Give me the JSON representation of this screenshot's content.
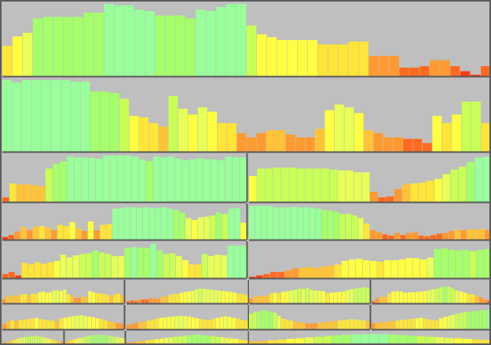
{
  "chart_data": {
    "type": "bar",
    "title": "",
    "xlabel": "",
    "ylabel": "",
    "legend": "none",
    "grid": false,
    "value_range": [
      0,
      100
    ],
    "colors": {
      "background": "#bfbfbf",
      "divider": "#5a5a5a",
      "scale": [
        "#ff3b10",
        "#ff6a20",
        "#ff9a30",
        "#ffc335",
        "#ffe535",
        "#ffff40",
        "#e8ff55",
        "#c8ff55",
        "#a4ff6a",
        "#98ff9a"
      ]
    },
    "panels": [
      {
        "id": "p1",
        "values": [
          42,
          55,
          60,
          80,
          82,
          82,
          82,
          82,
          88,
          88,
          100,
          98,
          98,
          92,
          90,
          84,
          84,
          84,
          80,
          92,
          90,
          96,
          100,
          100,
          70,
          58,
          54,
          50,
          50,
          50,
          50,
          44,
          44,
          44,
          48,
          48,
          28,
          28,
          28,
          12,
          12,
          14,
          22,
          22,
          14,
          7,
          0,
          14
        ]
      },
      {
        "id": "p2",
        "values": [
          100,
          97,
          100,
          100,
          100,
          100,
          100,
          98,
          98,
          84,
          84,
          82,
          74,
          50,
          48,
          40,
          35,
          78,
          60,
          52,
          62,
          56,
          40,
          40,
          26,
          20,
          26,
          30,
          30,
          24,
          20,
          20,
          32,
          58,
          66,
          62,
          54,
          30,
          26,
          20,
          20,
          18,
          18,
          12,
          50,
          40,
          52,
          70,
          70,
          40
        ]
      },
      {
        "id": "p3",
        "values": [
          10,
          40,
          38,
          38,
          36,
          34,
          72,
          82,
          88,
          98,
          96,
          96,
          95,
          93,
          100,
          100,
          100,
          100,
          98,
          92,
          88,
          98,
          96,
          98,
          93,
          90,
          92,
          94,
          92,
          92,
          90,
          98,
          96,
          96
        ]
      },
      {
        "id": "p4",
        "values": [
          56,
          72,
          72,
          74,
          74,
          74,
          72,
          72,
          72,
          72,
          70,
          68,
          68,
          64,
          64,
          22,
          10,
          12,
          28,
          38,
          40,
          42,
          46,
          50,
          60,
          70,
          76,
          86,
          96,
          98
        ]
      },
      {
        "id": "p5",
        "values": [
          8,
          14,
          24,
          38,
          28,
          38,
          40,
          36,
          28,
          44,
          40,
          52,
          34,
          26,
          54,
          28,
          44,
          46,
          92,
          94,
          96,
          96,
          94,
          96,
          94,
          94,
          96,
          92,
          88,
          80,
          64,
          58,
          66,
          68,
          72,
          80,
          76,
          92,
          94,
          50
        ]
      },
      {
        "id": "p6",
        "values": [
          100,
          100,
          100,
          100,
          96,
          96,
          96,
          98,
          96,
          96,
          94,
          92,
          88,
          86,
          82,
          76,
          76,
          72,
          64,
          48,
          28,
          22,
          16,
          12,
          20,
          14,
          20,
          22,
          12,
          10,
          14,
          18,
          20,
          26,
          30,
          28,
          30,
          30,
          32,
          28
        ]
      },
      {
        "id": "p7",
        "values": [
          12,
          18,
          8,
          44,
          40,
          46,
          42,
          46,
          50,
          68,
          60,
          66,
          70,
          72,
          80,
          74,
          70,
          64,
          64,
          88,
          90,
          88,
          88,
          100,
          80,
          70,
          72,
          64,
          52,
          40,
          40,
          70,
          64,
          68,
          66,
          94,
          94,
          94
        ]
      },
      {
        "id": "p8",
        "values": [
          4,
          8,
          12,
          18,
          18,
          22,
          28,
          30,
          32,
          30,
          34,
          36,
          40,
          50,
          54,
          56,
          52,
          50,
          48,
          52,
          52,
          54,
          58,
          58,
          54,
          60,
          84,
          86,
          82,
          80,
          82,
          78,
          82,
          84
        ]
      },
      {
        "id": "p9",
        "values": [
          20,
          34,
          34,
          38,
          36,
          42,
          44,
          38,
          46,
          44,
          52,
          56,
          50,
          52,
          60,
          62,
          58,
          66,
          44,
          38,
          26,
          26,
          32,
          30,
          58,
          52,
          48,
          46,
          44,
          40,
          36,
          42,
          46,
          38
        ]
      },
      {
        "id": "p10",
        "values": [
          10,
          14,
          12,
          20,
          18,
          18,
          26,
          24,
          22,
          34,
          30,
          40,
          44,
          44,
          50,
          54,
          56,
          60,
          66,
          70,
          68,
          66,
          64,
          62,
          60,
          58,
          56,
          54,
          50,
          46,
          44,
          40
        ]
      },
      {
        "id": "p11",
        "values": [
          22,
          30,
          34,
          34,
          36,
          46,
          50,
          48,
          54,
          56,
          60,
          64,
          70,
          68,
          72,
          64,
          60,
          60,
          58,
          48,
          50,
          52,
          54,
          56,
          62,
          66,
          70,
          72,
          76,
          74
        ]
      },
      {
        "id": "p12",
        "values": [
          10,
          24,
          32,
          30,
          46,
          56,
          58,
          56,
          50,
          52,
          52,
          54,
          56,
          58,
          62,
          66,
          70,
          76,
          80,
          78,
          70,
          60,
          56,
          50,
          44,
          42,
          36,
          28,
          20,
          14
        ]
      },
      {
        "id": "p13",
        "values": [
          24,
          36,
          40,
          38,
          42,
          44,
          46,
          48,
          52,
          46,
          44,
          40,
          40,
          36,
          48,
          52,
          56,
          60,
          62,
          64,
          60,
          58,
          54,
          50,
          46,
          40,
          36,
          32,
          28,
          26
        ]
      },
      {
        "id": "p14",
        "values": [
          20,
          24,
          28,
          32,
          36,
          40,
          44,
          48,
          52,
          54,
          56,
          58,
          60,
          62,
          60,
          58,
          54,
          50,
          46,
          44,
          42,
          48,
          52,
          56,
          60,
          56,
          52,
          48,
          44,
          40
        ]
      },
      {
        "id": "p15",
        "values": [
          70,
          78,
          82,
          86,
          84,
          80,
          76,
          60,
          48,
          44,
          40,
          36,
          32,
          30,
          28,
          26,
          28,
          30,
          32,
          34,
          36,
          38,
          40,
          42,
          44,
          46,
          44,
          42,
          40,
          38
        ]
      },
      {
        "id": "p16",
        "values": [
          28,
          30,
          32,
          34,
          36,
          38,
          40,
          42,
          44,
          46,
          48,
          50,
          52,
          48,
          44,
          42,
          40,
          50,
          56,
          60,
          66,
          70,
          74,
          78,
          80,
          82,
          84,
          86,
          88,
          90
        ]
      },
      {
        "id": "p17",
        "values": [
          20,
          26,
          30,
          36,
          40,
          48,
          54,
          60,
          64,
          66,
          70,
          72,
          74,
          76,
          78,
          74,
          70,
          66,
          60,
          56,
          50,
          46,
          40,
          36,
          30,
          28
        ]
      },
      {
        "id": "p18",
        "values": [
          30,
          36,
          42,
          46,
          50,
          56,
          60,
          64,
          70,
          74,
          78,
          80,
          82,
          84,
          86,
          88,
          86,
          84,
          80,
          78,
          74,
          70,
          66,
          62,
          60,
          58
        ]
      },
      {
        "id": "p19",
        "values": [
          20,
          24,
          30,
          34,
          40,
          44,
          50,
          54,
          60,
          64,
          70,
          74,
          78,
          82,
          86,
          88,
          84,
          80,
          76,
          70,
          66,
          60,
          56,
          52,
          46,
          40
        ]
      },
      {
        "id": "p20",
        "values": [
          30,
          34,
          40,
          46,
          52,
          58,
          64,
          70,
          76,
          82,
          86,
          90,
          92,
          94,
          92,
          88,
          84,
          80,
          76,
          70,
          66,
          60,
          56,
          52,
          46,
          42
        ]
      }
    ]
  }
}
